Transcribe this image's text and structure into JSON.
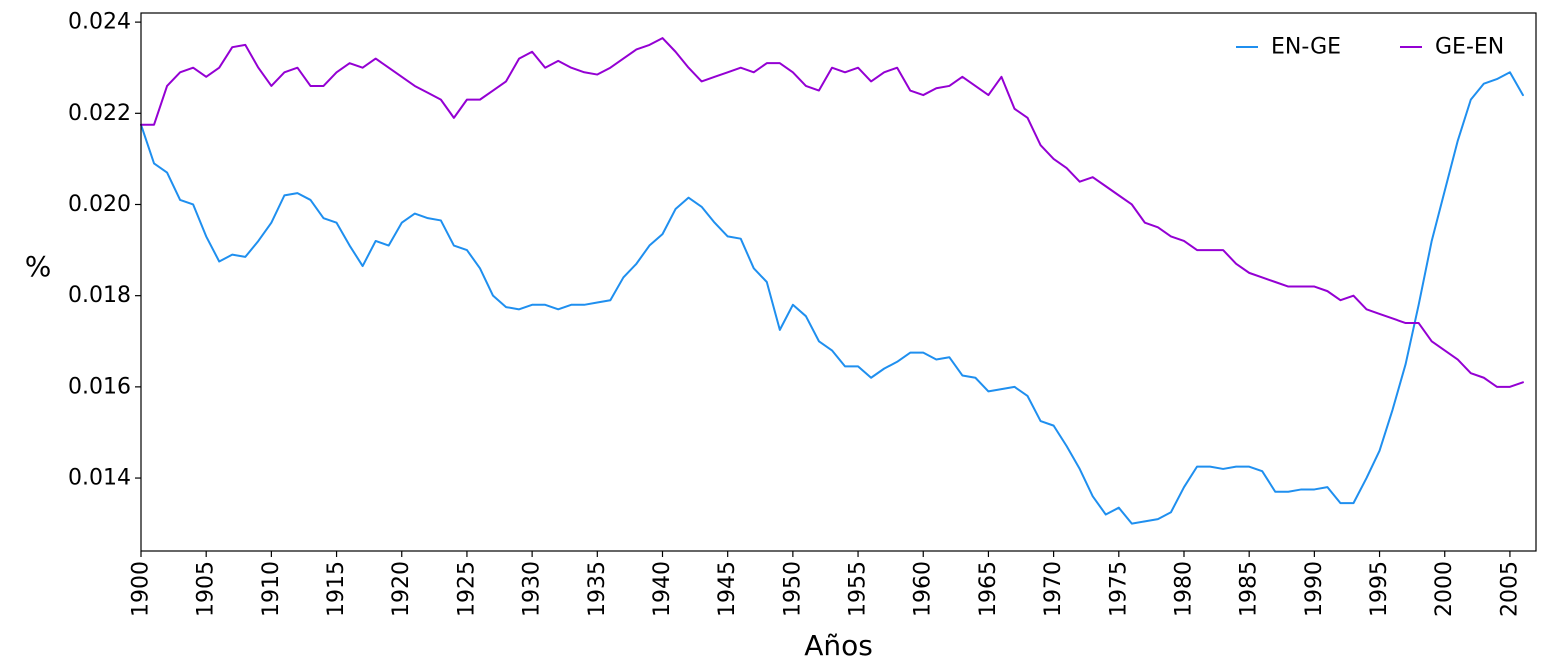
{
  "chart_data": {
    "type": "line",
    "title": "",
    "xlabel": "Años",
    "ylabel": "%",
    "xlim": [
      1900,
      2007
    ],
    "ylim": [
      0.0124,
      0.0242
    ],
    "x_ticks": [
      "1900",
      "1905",
      "1910",
      "1915",
      "1920",
      "1925",
      "1930",
      "1935",
      "1940",
      "1945",
      "1950",
      "1955",
      "1960",
      "1965",
      "1970",
      "1975",
      "1980",
      "1985",
      "1990",
      "1995",
      "2000",
      "2005"
    ],
    "y_ticks": [
      "0.014",
      "0.016",
      "0.018",
      "0.020",
      "0.022",
      "0.024"
    ],
    "legend_position": "top-right",
    "grid": false,
    "x_start": 1900,
    "series": [
      {
        "name": "EN-GE",
        "color": "#1f8fef",
        "values": [
          0.02175,
          0.0209,
          0.0207,
          0.0201,
          0.02,
          0.0193,
          0.01875,
          0.0189,
          0.01885,
          0.0192,
          0.0196,
          0.0202,
          0.02025,
          0.0201,
          0.0197,
          0.0196,
          0.0191,
          0.01865,
          0.0192,
          0.0191,
          0.0196,
          0.0198,
          0.0197,
          0.01965,
          0.0191,
          0.019,
          0.0186,
          0.018,
          0.01775,
          0.0177,
          0.0178,
          0.0178,
          0.0177,
          0.0178,
          0.0178,
          0.01785,
          0.0179,
          0.0184,
          0.0187,
          0.0191,
          0.01935,
          0.0199,
          0.02015,
          0.01995,
          0.0196,
          0.0193,
          0.01925,
          0.0186,
          0.0183,
          0.01725,
          0.0178,
          0.01755,
          0.017,
          0.0168,
          0.01645,
          0.01645,
          0.0162,
          0.0164,
          0.01655,
          0.01675,
          0.01675,
          0.0166,
          0.01665,
          0.01625,
          0.0162,
          0.0159,
          0.01595,
          0.016,
          0.0158,
          0.01525,
          0.01515,
          0.0147,
          0.0142,
          0.0136,
          0.0132,
          0.01335,
          0.013,
          0.01305,
          0.0131,
          0.01325,
          0.0138,
          0.01425,
          0.01425,
          0.0142,
          0.01425,
          0.01425,
          0.01415,
          0.0137,
          0.0137,
          0.01375,
          0.01375,
          0.0138,
          0.01345,
          0.01345,
          0.014,
          0.0146,
          0.0155,
          0.0165,
          0.0178,
          0.0192,
          0.0203,
          0.0214,
          0.0223,
          0.02265,
          0.02275,
          0.0229,
          0.0224
        ]
      },
      {
        "name": "GE-EN",
        "color": "#9400d3",
        "values": [
          0.02175,
          0.02175,
          0.0226,
          0.0229,
          0.023,
          0.0228,
          0.023,
          0.02345,
          0.0235,
          0.023,
          0.0226,
          0.0229,
          0.023,
          0.0226,
          0.0226,
          0.0229,
          0.0231,
          0.023,
          0.0232,
          0.023,
          0.0228,
          0.0226,
          0.02245,
          0.0223,
          0.0219,
          0.0223,
          0.0223,
          0.0225,
          0.0227,
          0.0232,
          0.02335,
          0.023,
          0.02315,
          0.023,
          0.0229,
          0.02285,
          0.023,
          0.0232,
          0.0234,
          0.0235,
          0.02365,
          0.02335,
          0.023,
          0.0227,
          0.0228,
          0.0229,
          0.023,
          0.0229,
          0.0231,
          0.0231,
          0.0229,
          0.0226,
          0.0225,
          0.023,
          0.0229,
          0.023,
          0.0227,
          0.0229,
          0.023,
          0.0225,
          0.0224,
          0.02255,
          0.0226,
          0.0228,
          0.0226,
          0.0224,
          0.0228,
          0.0221,
          0.0219,
          0.0213,
          0.021,
          0.0208,
          0.0205,
          0.0206,
          0.0204,
          0.0202,
          0.02,
          0.0196,
          0.0195,
          0.0193,
          0.0192,
          0.019,
          0.019,
          0.019,
          0.0187,
          0.0185,
          0.0184,
          0.0183,
          0.0182,
          0.0182,
          0.0182,
          0.0181,
          0.0179,
          0.018,
          0.0177,
          0.0176,
          0.0175,
          0.0174,
          0.0174,
          0.017,
          0.0168,
          0.0166,
          0.0163,
          0.0162,
          0.016,
          0.016,
          0.0161
        ]
      }
    ]
  }
}
